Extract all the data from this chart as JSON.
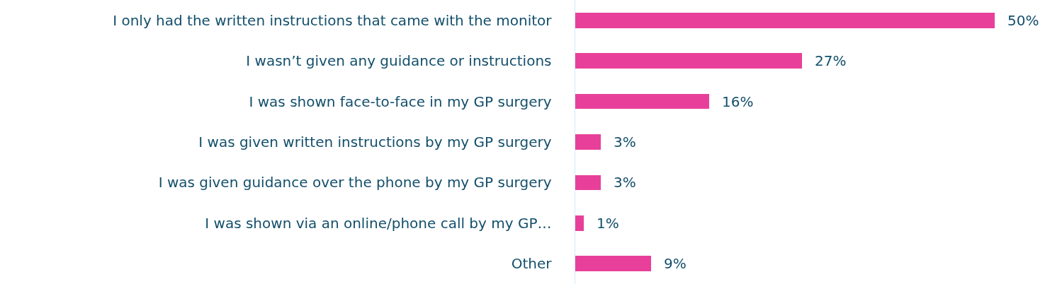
{
  "chart_data": {
    "type": "bar",
    "orientation": "horizontal",
    "categories": [
      "I only had the written instructions that came with the monitor",
      "I wasn’t given any guidance or instructions",
      "I was shown face-to-face in my GP surgery",
      "I was given written instructions by my GP surgery",
      "I was given guidance over the phone by my GP surgery",
      "I was shown via an online/phone call by my GP…",
      "Other"
    ],
    "values": [
      50,
      27,
      16,
      3,
      3,
      1,
      9
    ],
    "value_labels": [
      "50%",
      "27%",
      "16%",
      "3%",
      "3%",
      "1%",
      "9%"
    ],
    "color": "#e8409a",
    "tick_labels": "y",
    "grid": false
  }
}
